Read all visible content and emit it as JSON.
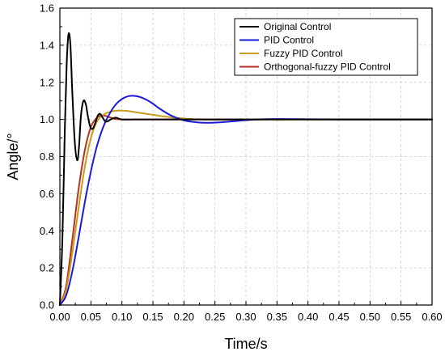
{
  "chart_data": {
    "type": "line",
    "title": "",
    "xlabel": "Time/s",
    "ylabel": "Angle/°",
    "xlim": [
      0,
      0.6
    ],
    "ylim": [
      0,
      1.6
    ],
    "x_ticks": [
      0.0,
      0.05,
      0.1,
      0.15,
      0.2,
      0.25,
      0.3,
      0.35,
      0.4,
      0.45,
      0.5,
      0.55,
      0.6
    ],
    "x_tick_labels": [
      "0.00",
      "0.05",
      "0.10",
      "0.15",
      "0.20",
      "0.25",
      "0.30",
      "0.35",
      "0.40",
      "0.45",
      "0.50",
      "0.55",
      "0.60"
    ],
    "y_ticks": [
      0.0,
      0.2,
      0.4,
      0.6,
      0.8,
      1.0,
      1.2,
      1.4,
      1.6
    ],
    "y_tick_labels": [
      "0.0",
      "0.2",
      "0.4",
      "0.6",
      "0.8",
      "1.0",
      "1.2",
      "1.4",
      "1.6"
    ],
    "grid": true,
    "legend": "top-right",
    "series": [
      {
        "name": "Original Control",
        "color": "#000000",
        "x": [
          0,
          0.004,
          0.008,
          0.011,
          0.014,
          0.017,
          0.02,
          0.024,
          0.028,
          0.031,
          0.034,
          0.038,
          0.042,
          0.045,
          0.049,
          0.053,
          0.057,
          0.061,
          0.065,
          0.069,
          0.073,
          0.077,
          0.082,
          0.09,
          0.1,
          0.12,
          0.15,
          0.2,
          0.3,
          0.4,
          0.5,
          0.6
        ],
        "y": [
          0,
          0.35,
          0.95,
          1.3,
          1.46,
          1.4,
          1.15,
          0.88,
          0.78,
          0.86,
          1.02,
          1.1,
          1.08,
          1.02,
          0.96,
          0.95,
          0.98,
          1.02,
          1.03,
          1.01,
          0.99,
          0.99,
          1.0,
          1.01,
          1.0,
          1.0,
          1.0,
          1.0,
          1.0,
          1.0,
          1.0,
          1.0
        ]
      },
      {
        "name": "PID Control",
        "color": "#1a1adc",
        "x": [
          0,
          0.01,
          0.02,
          0.03,
          0.04,
          0.05,
          0.06,
          0.07,
          0.08,
          0.09,
          0.1,
          0.11,
          0.12,
          0.13,
          0.14,
          0.15,
          0.16,
          0.18,
          0.2,
          0.22,
          0.24,
          0.26,
          0.28,
          0.3,
          0.32,
          0.35,
          0.4,
          0.45,
          0.5,
          0.6
        ],
        "y": [
          0,
          0.05,
          0.18,
          0.36,
          0.55,
          0.72,
          0.86,
          0.96,
          1.03,
          1.08,
          1.11,
          1.125,
          1.127,
          1.12,
          1.105,
          1.085,
          1.06,
          1.02,
          0.995,
          0.985,
          0.982,
          0.985,
          0.99,
          0.996,
          1.0,
          1.002,
          1.001,
          1.0,
          1.0,
          1.0
        ]
      },
      {
        "name": "Fuzzy PID Control",
        "color": "#c89a1e",
        "x": [
          0,
          0.01,
          0.02,
          0.03,
          0.04,
          0.05,
          0.06,
          0.07,
          0.08,
          0.09,
          0.1,
          0.11,
          0.12,
          0.13,
          0.15,
          0.17,
          0.2,
          0.23,
          0.26,
          0.3,
          0.35,
          0.4,
          0.5,
          0.6
        ],
        "y": [
          0,
          0.08,
          0.28,
          0.52,
          0.74,
          0.9,
          0.99,
          1.025,
          1.04,
          1.047,
          1.048,
          1.045,
          1.04,
          1.035,
          1.025,
          1.015,
          1.005,
          1.0,
          0.998,
          1.0,
          1.0,
          1.0,
          1.0,
          1.0
        ]
      },
      {
        "name": "Orthogonal-fuzzy PID Control",
        "color": "#b5321e",
        "x": [
          0,
          0.01,
          0.02,
          0.03,
          0.04,
          0.05,
          0.06,
          0.065,
          0.07,
          0.075,
          0.08,
          0.085,
          0.09,
          0.1,
          0.12,
          0.15,
          0.2,
          0.3,
          0.4,
          0.5,
          0.6
        ],
        "y": [
          0,
          0.1,
          0.35,
          0.62,
          0.83,
          0.96,
          1.01,
          1.02,
          1.022,
          1.018,
          1.012,
          1.006,
          1.002,
          1.0,
          1.0,
          1.0,
          1.0,
          1.0,
          1.0,
          1.0,
          1.0
        ]
      }
    ]
  }
}
